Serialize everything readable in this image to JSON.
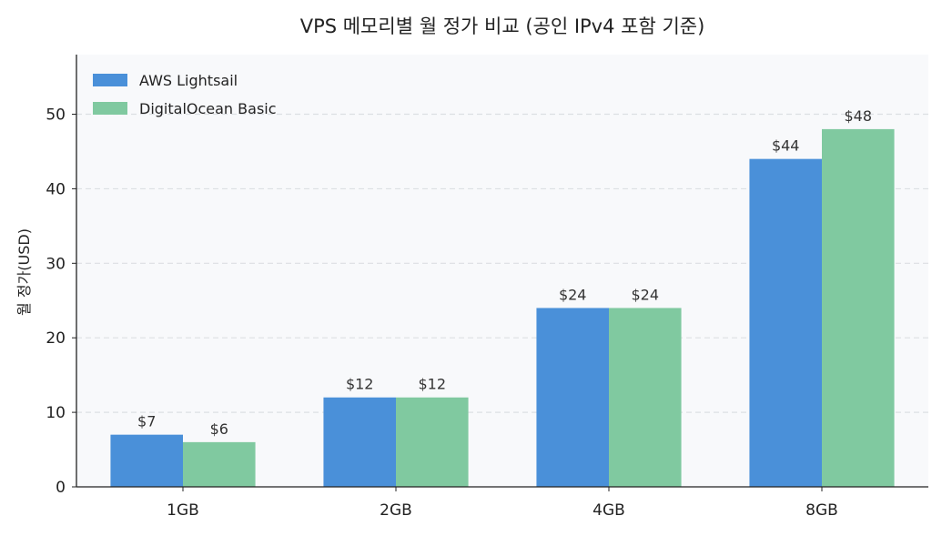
{
  "chart_data": {
    "type": "bar",
    "title": "VPS 메모리별 월 정가 비교 (공인 IPv4 포함 기준)",
    "xlabel": "",
    "ylabel": "월 정가(USD)",
    "categories": [
      "1GB",
      "2GB",
      "4GB",
      "8GB"
    ],
    "series": [
      {
        "name": "AWS Lightsail",
        "values": [
          7,
          12,
          24,
          44
        ],
        "labels": [
          "$7",
          "$12",
          "$24",
          "$44"
        ],
        "color": "#4a90d9"
      },
      {
        "name": "DigitalOcean Basic",
        "values": [
          6,
          12,
          24,
          48
        ],
        "labels": [
          "$6",
          "$12",
          "$24",
          "$48"
        ],
        "color": "#80c9a0"
      }
    ],
    "ylim": [
      0,
      58
    ],
    "yticks": [
      0,
      10,
      20,
      30,
      40,
      50
    ],
    "grid": true,
    "legend_position": "top-left",
    "background_color": "#f8f9fb",
    "axis_color": "#222222",
    "grid_color": "#dcdfe3"
  }
}
